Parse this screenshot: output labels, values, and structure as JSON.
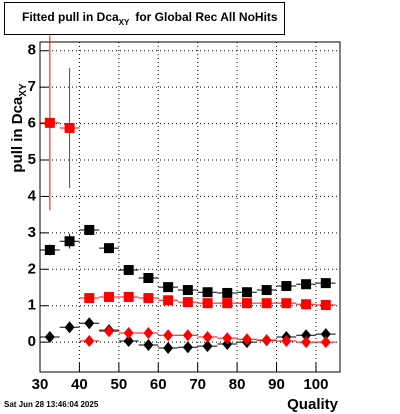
{
  "chart_data": {
    "type": "scatter",
    "title": {
      "text": "Fitted pull in Dca",
      "subscript": "XY",
      "suffix": "for Global Rec All NoHits"
    },
    "x_label": "Quality",
    "y_label": {
      "text": "pull in Dca",
      "subscript": "XY"
    },
    "timestamp": "Sat Jun 28 13:46:04 2025",
    "x": [
      32.5,
      37.5,
      42.5,
      47.5,
      52.5,
      57.5,
      62.5,
      67.5,
      72.5,
      77.5,
      82.5,
      87.5,
      92.5,
      97.5,
      102.5
    ],
    "series": [
      {
        "color": "#000000",
        "marker": "square",
        "values": [
          2.53,
          2.77,
          3.08,
          2.58,
          1.98,
          1.76,
          1.51,
          1.43,
          1.37,
          1.35,
          1.37,
          1.43,
          1.54,
          1.59,
          1.62
        ],
        "errors": [
          0.15,
          0.2,
          0.12,
          0.08,
          0.05,
          0.05,
          0.05,
          0.05,
          0.05,
          0.05,
          0.05,
          0.05,
          0.05,
          0.05,
          0.05
        ]
      },
      {
        "color": "#ff0000",
        "marker": "square",
        "values": [
          6.02,
          5.88,
          1.21,
          1.24,
          1.24,
          1.21,
          1.15,
          1.1,
          1.07,
          1.07,
          1.07,
          1.07,
          1.07,
          1.04,
          1.02
        ],
        "errors": [
          2.4,
          1.65,
          0.05,
          0.05,
          0.05,
          0.05,
          0.05,
          0.05,
          0.05,
          0.05,
          0.05,
          0.05,
          0.05,
          0.05,
          0.05
        ]
      },
      {
        "color": "#000000",
        "marker": "diamond",
        "values": [
          0.14,
          0.41,
          0.52,
          0.33,
          0.03,
          -0.08,
          -0.16,
          -0.14,
          -0.11,
          -0.05,
          0,
          0.05,
          0.14,
          0.19,
          0.22
        ],
        "errors": [
          0.1,
          0.1,
          0.05,
          0.05,
          0.05,
          0.05,
          0.05,
          0.05,
          0.05,
          0.05,
          0.05,
          0.05,
          0.05,
          0.05,
          0.05
        ]
      },
      {
        "color": "#ff0000",
        "marker": "diamond",
        "values": [
          null,
          null,
          0.03,
          0.3,
          0.25,
          0.25,
          0.19,
          0.19,
          0.14,
          0.11,
          0.08,
          0.05,
          0.03,
          0,
          0
        ],
        "errors": [
          null,
          null,
          0.05,
          0.05,
          0.05,
          0.05,
          0.05,
          0.05,
          0.05,
          0.05,
          0.05,
          0.05,
          0.05,
          0.05,
          0.05
        ]
      }
    ],
    "xlim": [
      30,
      106.1
    ],
    "ylim": [
      -0.82,
      8.24
    ],
    "xticks": [
      30,
      40,
      50,
      60,
      70,
      80,
      90,
      100
    ],
    "yticks": [
      0,
      1,
      2,
      3,
      4,
      5,
      6,
      7,
      8
    ],
    "grid": true,
    "bin_halfwidth": 2.5
  }
}
